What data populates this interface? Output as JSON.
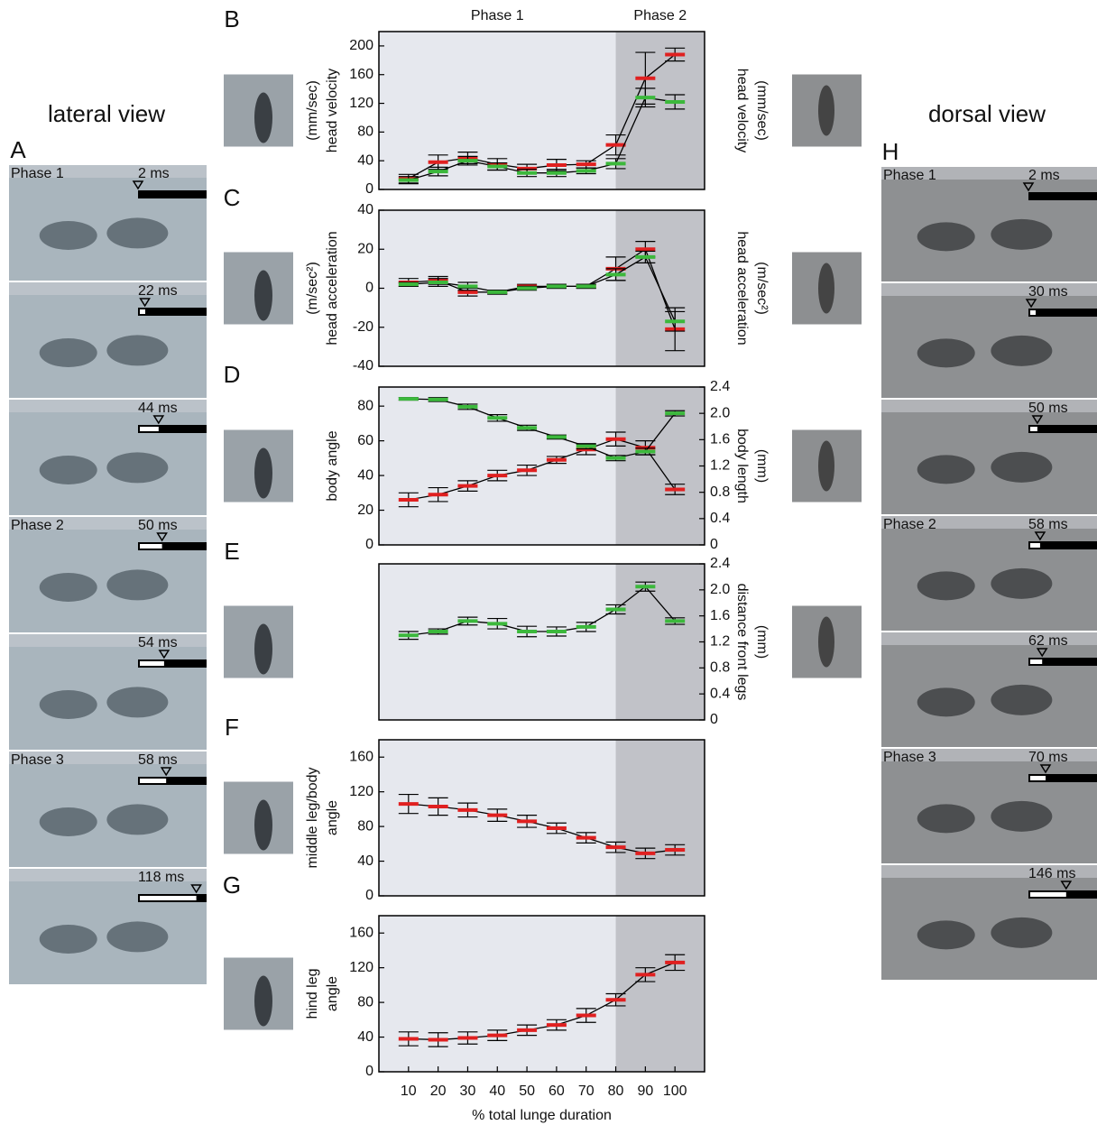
{
  "phases": [
    "Phase 1",
    "Phase 2"
  ],
  "lateral": {
    "title": "lateral view",
    "panel": "A",
    "color": "#e03a3a",
    "frames": [
      {
        "phase": "Phase 1",
        "time": "2 ms"
      },
      {
        "phase": null,
        "time": "22 ms"
      },
      {
        "phase": null,
        "time": "44 ms"
      },
      {
        "phase": "Phase 2",
        "time": "50 ms"
      },
      {
        "phase": null,
        "time": "54 ms"
      },
      {
        "phase": "Phase 3",
        "time": "58 ms"
      },
      {
        "phase": null,
        "time": "118 ms"
      }
    ]
  },
  "dorsal": {
    "title": "dorsal view",
    "panel": "H",
    "color": "#7dc21e",
    "frames": [
      {
        "phase": "Phase 1",
        "time": "2 ms"
      },
      {
        "phase": null,
        "time": "30 ms"
      },
      {
        "phase": null,
        "time": "50 ms"
      },
      {
        "phase": "Phase 2",
        "time": "58 ms"
      },
      {
        "phase": null,
        "time": "62 ms"
      },
      {
        "phase": "Phase 3",
        "time": "70 ms"
      },
      {
        "phase": null,
        "time": "146 ms"
      }
    ]
  },
  "chart_data": [
    {
      "type": "line",
      "panel": "B",
      "x": [
        10,
        20,
        30,
        40,
        50,
        60,
        70,
        80,
        90,
        100
      ],
      "xlim": [
        0,
        110
      ],
      "shade_from": 80,
      "ylim": [
        0,
        220
      ],
      "yticks": [
        0,
        40,
        80,
        120,
        160,
        200
      ],
      "ylabel": [
        "head velocity",
        "(mm/sec)"
      ],
      "y2label": [
        "head velocity",
        "(mm/sec)"
      ],
      "series": [
        {
          "color": "#e02020",
          "values": [
            15,
            38,
            44,
            35,
            29,
            34,
            35,
            62,
            155,
            188
          ],
          "errors": [
            6,
            10,
            8,
            8,
            6,
            8,
            5,
            14,
            36,
            9
          ]
        },
        {
          "color": "#3cb83c",
          "values": [
            13,
            25,
            40,
            32,
            23,
            23,
            26,
            36,
            128,
            122
          ],
          "errors": [
            5,
            6,
            6,
            5,
            5,
            5,
            4,
            7,
            13,
            10
          ]
        }
      ]
    },
    {
      "type": "line",
      "panel": "C",
      "x": [
        10,
        20,
        30,
        40,
        50,
        60,
        70,
        80,
        90,
        100
      ],
      "xlim": [
        0,
        110
      ],
      "shade_from": 80,
      "ylim": [
        -40,
        40
      ],
      "yticks": [
        -40,
        -20,
        0,
        20,
        40
      ],
      "ylabel": [
        "head acceleration",
        "(m/sec²)"
      ],
      "y2label": [
        "head acceleration",
        "(m/sec²)"
      ],
      "series": [
        {
          "color": "#e02020",
          "values": [
            3,
            4,
            -2,
            -2,
            1,
            1,
            1,
            10,
            20,
            -21
          ],
          "errors": [
            2,
            2,
            2,
            1,
            1,
            1,
            1,
            6,
            4,
            11
          ]
        },
        {
          "color": "#3cb83c",
          "values": [
            2,
            3,
            1,
            -2,
            0,
            1,
            1,
            7,
            16,
            -17
          ],
          "errors": [
            1,
            2,
            2,
            1,
            1,
            1,
            1,
            3,
            3,
            5
          ]
        }
      ]
    },
    {
      "type": "line",
      "panel": "D",
      "x": [
        10,
        20,
        30,
        40,
        50,
        60,
        70,
        80,
        90,
        100
      ],
      "xlim": [
        0,
        110
      ],
      "shade_from": 80,
      "ylim": [
        0,
        91
      ],
      "yticks": [
        0,
        20,
        40,
        60,
        80
      ],
      "y2lim": [
        0,
        2.4
      ],
      "y2ticks": [
        0,
        0.4,
        0.8,
        1.2,
        1.6,
        {
          "value": 2,
          "label": "2.0"
        },
        2.4
      ],
      "ylabel": [
        "body angle"
      ],
      "y2label": [
        "body length",
        "(mm)"
      ],
      "series": [
        {
          "color": "#e02020",
          "values": [
            26,
            29,
            34,
            40,
            43,
            49,
            55,
            61,
            56,
            32
          ],
          "errors": [
            4,
            4,
            3,
            3,
            3,
            2,
            3,
            4,
            4,
            3
          ]
        },
        {
          "color": "#3cb83c",
          "axis": "y2",
          "values": [
            2.22,
            2.21,
            2.1,
            1.93,
            1.78,
            1.64,
            1.5,
            1.32,
            1.42,
            2.0
          ],
          "errors": [
            0.02,
            0.03,
            0.04,
            0.05,
            0.04,
            0.03,
            0.04,
            0.04,
            0.05,
            0.04
          ]
        }
      ]
    },
    {
      "type": "line",
      "panel": "E",
      "x": [
        10,
        20,
        30,
        40,
        50,
        60,
        70,
        80,
        90,
        100
      ],
      "xlim": [
        0,
        110
      ],
      "shade_from": 80,
      "y2lim": [
        0,
        2.4
      ],
      "y2ticks": [
        0,
        0.4,
        0.8,
        1.2,
        1.6,
        {
          "value": 2,
          "label": "2.0"
        },
        2.4
      ],
      "y2label": [
        "distance front legs",
        "(mm)"
      ],
      "series": [
        {
          "color": "#3cb83c",
          "axis": "y2",
          "values": [
            1.3,
            1.36,
            1.52,
            1.48,
            1.36,
            1.36,
            1.43,
            1.7,
            2.05,
            1.52
          ],
          "errors": [
            0.06,
            0.04,
            0.06,
            0.08,
            0.08,
            0.07,
            0.07,
            0.07,
            0.07,
            0.05
          ]
        }
      ]
    },
    {
      "type": "line",
      "panel": "F",
      "x": [
        10,
        20,
        30,
        40,
        50,
        60,
        70,
        80,
        90,
        100
      ],
      "xlim": [
        0,
        110
      ],
      "shade_from": 80,
      "ylim": [
        0,
        180
      ],
      "yticks": [
        0,
        40,
        80,
        120,
        160
      ],
      "ylabel": [
        "angle",
        "middle leg/body"
      ],
      "series": [
        {
          "color": "#e02020",
          "values": [
            106,
            103,
            99,
            93,
            86,
            78,
            67,
            56,
            49,
            53
          ],
          "errors": [
            11,
            10,
            8,
            7,
            7,
            6,
            6,
            6,
            6,
            6
          ]
        }
      ]
    },
    {
      "type": "line",
      "panel": "G",
      "x": [
        10,
        20,
        30,
        40,
        50,
        60,
        70,
        80,
        90,
        100
      ],
      "xlim": [
        0,
        110
      ],
      "shade_from": 80,
      "ylim": [
        0,
        180
      ],
      "yticks": [
        0,
        40,
        80,
        120,
        160
      ],
      "xticks": [
        10,
        20,
        30,
        40,
        50,
        60,
        70,
        80,
        90,
        100
      ],
      "xlabel": "% total lunge duration",
      "ylabel": [
        "angle",
        "hind leg"
      ],
      "series": [
        {
          "color": "#e02020",
          "values": [
            38,
            37,
            39,
            42,
            48,
            54,
            65,
            83,
            112,
            126
          ],
          "errors": [
            8,
            8,
            7,
            6,
            6,
            6,
            8,
            7,
            8,
            9
          ]
        }
      ]
    }
  ]
}
